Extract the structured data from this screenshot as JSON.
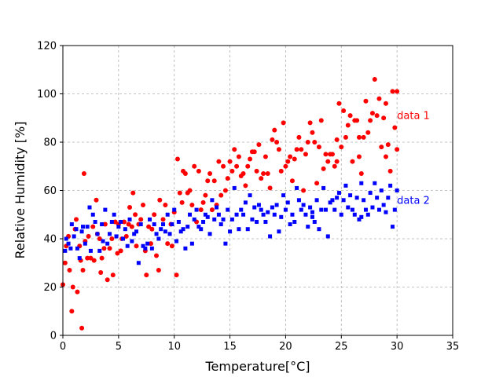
{
  "chart_data": {
    "type": "scatter",
    "xlabel": "Temperature[°C]",
    "ylabel": "Relative Humidity [%]",
    "xlim": [
      0,
      35
    ],
    "ylim": [
      0,
      120
    ],
    "xticks": [
      "0",
      "5",
      "10",
      "15",
      "20",
      "25",
      "30",
      "35"
    ],
    "yticks": [
      "0",
      "20",
      "40",
      "60",
      "80",
      "100",
      "120"
    ],
    "grid": true,
    "series": [
      {
        "name": "data 1",
        "color": "#ff0000",
        "marker": "circle",
        "points": [
          [
            0.0,
            21
          ],
          [
            0.2,
            30
          ],
          [
            0.3,
            37
          ],
          [
            0.5,
            41
          ],
          [
            0.6,
            27
          ],
          [
            0.8,
            10
          ],
          [
            0.9,
            20
          ],
          [
            1.1,
            44
          ],
          [
            1.2,
            48
          ],
          [
            1.3,
            18
          ],
          [
            1.5,
            37
          ],
          [
            1.6,
            31
          ],
          [
            1.7,
            3
          ],
          [
            1.8,
            27
          ],
          [
            1.9,
            67
          ],
          [
            2.0,
            39
          ],
          [
            2.2,
            32
          ],
          [
            2.3,
            41
          ],
          [
            2.5,
            32
          ],
          [
            2.7,
            45
          ],
          [
            2.8,
            31
          ],
          [
            3.0,
            56
          ],
          [
            3.1,
            42
          ],
          [
            3.3,
            40
          ],
          [
            3.4,
            26
          ],
          [
            3.5,
            32
          ],
          [
            3.7,
            36
          ],
          [
            3.8,
            46
          ],
          [
            4.0,
            23
          ],
          [
            4.2,
            36
          ],
          [
            4.4,
            40
          ],
          [
            4.5,
            25
          ],
          [
            4.7,
            47
          ],
          [
            4.9,
            34
          ],
          [
            5.0,
            46
          ],
          [
            5.2,
            35
          ],
          [
            5.3,
            40
          ],
          [
            5.5,
            47
          ],
          [
            5.7,
            41
          ],
          [
            5.9,
            46
          ],
          [
            6.0,
            53
          ],
          [
            6.2,
            45
          ],
          [
            6.3,
            59
          ],
          [
            6.5,
            50
          ],
          [
            6.6,
            37
          ],
          [
            6.8,
            46
          ],
          [
            7.0,
            48
          ],
          [
            7.2,
            54
          ],
          [
            7.4,
            35
          ],
          [
            7.5,
            25
          ],
          [
            7.7,
            45
          ],
          [
            7.9,
            38
          ],
          [
            8.0,
            44
          ],
          [
            8.2,
            50
          ],
          [
            8.4,
            33
          ],
          [
            8.6,
            27
          ],
          [
            8.7,
            56
          ],
          [
            9.0,
            48
          ],
          [
            9.2,
            54
          ],
          [
            9.4,
            38
          ],
          [
            9.7,
            46
          ],
          [
            9.8,
            37
          ],
          [
            10.0,
            51
          ],
          [
            10.2,
            25
          ],
          [
            10.3,
            73
          ],
          [
            10.5,
            59
          ],
          [
            10.7,
            55
          ],
          [
            10.8,
            68
          ],
          [
            11.0,
            67
          ],
          [
            11.2,
            59
          ],
          [
            11.4,
            60
          ],
          [
            11.6,
            54
          ],
          [
            11.8,
            70
          ],
          [
            12.0,
            47
          ],
          [
            12.2,
            68
          ],
          [
            12.4,
            52
          ],
          [
            12.6,
            55
          ],
          [
            12.8,
            58
          ],
          [
            13.0,
            64
          ],
          [
            13.2,
            67
          ],
          [
            13.4,
            52
          ],
          [
            13.6,
            64
          ],
          [
            13.8,
            54
          ],
          [
            14.0,
            72
          ],
          [
            14.2,
            58
          ],
          [
            14.4,
            70
          ],
          [
            14.6,
            60
          ],
          [
            14.8,
            65
          ],
          [
            15.0,
            72
          ],
          [
            15.2,
            68
          ],
          [
            15.4,
            77
          ],
          [
            15.6,
            70
          ],
          [
            15.8,
            74
          ],
          [
            16.0,
            66
          ],
          [
            16.2,
            67
          ],
          [
            16.4,
            62
          ],
          [
            16.6,
            70
          ],
          [
            16.8,
            73
          ],
          [
            17.0,
            76
          ],
          [
            17.2,
            76
          ],
          [
            17.4,
            68
          ],
          [
            17.6,
            79
          ],
          [
            17.8,
            65
          ],
          [
            18.0,
            67
          ],
          [
            18.2,
            74
          ],
          [
            18.4,
            67
          ],
          [
            18.6,
            61
          ],
          [
            18.8,
            81
          ],
          [
            19.0,
            85
          ],
          [
            19.2,
            80
          ],
          [
            19.4,
            77
          ],
          [
            19.6,
            68
          ],
          [
            19.8,
            88
          ],
          [
            20.0,
            70
          ],
          [
            20.2,
            72
          ],
          [
            20.4,
            74
          ],
          [
            20.6,
            64
          ],
          [
            20.8,
            73
          ],
          [
            21.0,
            77
          ],
          [
            21.2,
            82
          ],
          [
            21.4,
            77
          ],
          [
            21.6,
            60
          ],
          [
            21.8,
            75
          ],
          [
            22.0,
            80
          ],
          [
            22.2,
            88
          ],
          [
            22.4,
            84
          ],
          [
            22.6,
            80
          ],
          [
            22.8,
            63
          ],
          [
            23.0,
            78
          ],
          [
            23.2,
            89
          ],
          [
            23.4,
            69
          ],
          [
            23.6,
            75
          ],
          [
            23.8,
            72
          ],
          [
            24.0,
            75
          ],
          [
            24.2,
            75
          ],
          [
            24.4,
            70
          ],
          [
            24.6,
            81
          ],
          [
            24.8,
            96
          ],
          [
            25.0,
            78
          ],
          [
            25.2,
            93
          ],
          [
            25.4,
            82
          ],
          [
            25.6,
            87
          ],
          [
            25.8,
            91
          ],
          [
            26.0,
            72
          ],
          [
            26.2,
            89
          ],
          [
            26.4,
            89
          ],
          [
            26.6,
            74
          ],
          [
            26.8,
            67
          ],
          [
            27.0,
            82
          ],
          [
            27.2,
            97
          ],
          [
            27.4,
            84
          ],
          [
            27.6,
            89
          ],
          [
            27.8,
            92
          ],
          [
            28.0,
            106
          ],
          [
            28.2,
            91
          ],
          [
            28.4,
            98
          ],
          [
            28.6,
            78
          ],
          [
            28.8,
            90
          ],
          [
            29.0,
            96
          ],
          [
            29.2,
            79
          ],
          [
            29.4,
            68
          ],
          [
            29.6,
            101
          ],
          [
            29.8,
            86
          ],
          [
            30.0,
            77
          ],
          [
            30.0,
            101
          ],
          [
            24.6,
            72
          ],
          [
            26.6,
            82
          ],
          [
            29.0,
            74
          ]
        ]
      },
      {
        "name": "data 2",
        "color": "#0000ff",
        "marker": "square",
        "points": [
          [
            0.2,
            35
          ],
          [
            0.3,
            40
          ],
          [
            0.5,
            38
          ],
          [
            0.7,
            36
          ],
          [
            0.8,
            46
          ],
          [
            1.0,
            41
          ],
          [
            1.2,
            44
          ],
          [
            1.3,
            36
          ],
          [
            1.5,
            32
          ],
          [
            1.7,
            43
          ],
          [
            1.8,
            45
          ],
          [
            2.0,
            38
          ],
          [
            2.2,
            45
          ],
          [
            2.4,
            53
          ],
          [
            2.5,
            35
          ],
          [
            2.7,
            50
          ],
          [
            2.9,
            47
          ],
          [
            3.1,
            42
          ],
          [
            3.3,
            35
          ],
          [
            3.5,
            46
          ],
          [
            3.6,
            39
          ],
          [
            3.8,
            52
          ],
          [
            4.0,
            38
          ],
          [
            4.2,
            42
          ],
          [
            4.4,
            47
          ],
          [
            4.6,
            50
          ],
          [
            4.8,
            41
          ],
          [
            5.0,
            45
          ],
          [
            5.2,
            47
          ],
          [
            5.4,
            40
          ],
          [
            5.6,
            44
          ],
          [
            5.8,
            37
          ],
          [
            6.0,
            48
          ],
          [
            6.2,
            39
          ],
          [
            6.4,
            42
          ],
          [
            6.6,
            43
          ],
          [
            6.8,
            30
          ],
          [
            7.0,
            46
          ],
          [
            7.2,
            37
          ],
          [
            7.4,
            36
          ],
          [
            7.6,
            38
          ],
          [
            7.8,
            48
          ],
          [
            8.0,
            36
          ],
          [
            8.2,
            46
          ],
          [
            8.4,
            42
          ],
          [
            8.6,
            40
          ],
          [
            8.8,
            44
          ],
          [
            9.0,
            46
          ],
          [
            9.2,
            43
          ],
          [
            9.4,
            50
          ],
          [
            9.6,
            42
          ],
          [
            9.8,
            46
          ],
          [
            10.0,
            52
          ],
          [
            10.2,
            39
          ],
          [
            10.4,
            47
          ],
          [
            10.6,
            43
          ],
          [
            10.8,
            44
          ],
          [
            11.0,
            36
          ],
          [
            11.2,
            45
          ],
          [
            11.4,
            50
          ],
          [
            11.6,
            38
          ],
          [
            11.8,
            48
          ],
          [
            12.0,
            52
          ],
          [
            12.2,
            45
          ],
          [
            12.4,
            44
          ],
          [
            12.6,
            47
          ],
          [
            12.8,
            50
          ],
          [
            13.0,
            49
          ],
          [
            13.2,
            42
          ],
          [
            13.4,
            56
          ],
          [
            13.6,
            48
          ],
          [
            13.8,
            53
          ],
          [
            14.0,
            50
          ],
          [
            14.2,
            46
          ],
          [
            14.4,
            48
          ],
          [
            14.6,
            38
          ],
          [
            14.8,
            52
          ],
          [
            15.0,
            43
          ],
          [
            15.2,
            48
          ],
          [
            15.4,
            61
          ],
          [
            15.6,
            50
          ],
          [
            15.8,
            44
          ],
          [
            16.0,
            52
          ],
          [
            16.2,
            50
          ],
          [
            16.4,
            55
          ],
          [
            16.6,
            44
          ],
          [
            16.8,
            58
          ],
          [
            17.0,
            48
          ],
          [
            17.2,
            53
          ],
          [
            17.4,
            47
          ],
          [
            17.6,
            54
          ],
          [
            17.8,
            52
          ],
          [
            18.0,
            50
          ],
          [
            18.2,
            47
          ],
          [
            18.4,
            51
          ],
          [
            18.6,
            41
          ],
          [
            18.8,
            53
          ],
          [
            19.0,
            50
          ],
          [
            19.2,
            54
          ],
          [
            19.4,
            43
          ],
          [
            19.6,
            49
          ],
          [
            19.8,
            58
          ],
          [
            20.0,
            52
          ],
          [
            20.2,
            55
          ],
          [
            20.4,
            46
          ],
          [
            20.6,
            50
          ],
          [
            20.8,
            47
          ],
          [
            21.0,
            61
          ],
          [
            21.2,
            56
          ],
          [
            21.4,
            52
          ],
          [
            21.6,
            54
          ],
          [
            21.8,
            50
          ],
          [
            22.0,
            45
          ],
          [
            22.2,
            53
          ],
          [
            22.4,
            51
          ],
          [
            22.6,
            47
          ],
          [
            22.8,
            56
          ],
          [
            23.0,
            44
          ],
          [
            23.2,
            52
          ],
          [
            23.4,
            61
          ],
          [
            23.6,
            52
          ],
          [
            23.8,
            41
          ],
          [
            24.0,
            55
          ],
          [
            24.2,
            56
          ],
          [
            24.4,
            52
          ],
          [
            24.6,
            57
          ],
          [
            24.8,
            59
          ],
          [
            25.0,
            50
          ],
          [
            25.2,
            56
          ],
          [
            25.4,
            62
          ],
          [
            25.6,
            53
          ],
          [
            25.8,
            58
          ],
          [
            26.0,
            52
          ],
          [
            26.2,
            50
          ],
          [
            26.4,
            57
          ],
          [
            26.6,
            48
          ],
          [
            26.8,
            63
          ],
          [
            27.0,
            56
          ],
          [
            27.2,
            52
          ],
          [
            27.4,
            50
          ],
          [
            27.6,
            59
          ],
          [
            27.8,
            53
          ],
          [
            28.0,
            63
          ],
          [
            28.2,
            57
          ],
          [
            28.4,
            52
          ],
          [
            28.6,
            60
          ],
          [
            28.8,
            54
          ],
          [
            29.0,
            51
          ],
          [
            29.2,
            57
          ],
          [
            29.4,
            62
          ],
          [
            29.6,
            45
          ],
          [
            29.8,
            52
          ],
          [
            30.0,
            60
          ],
          [
            26.8,
            49
          ],
          [
            22.4,
            49
          ]
        ]
      }
    ],
    "annotations": [
      {
        "text": "data 1",
        "x": 30,
        "y": 91,
        "color": "#ff0000"
      },
      {
        "text": "data 2",
        "x": 30,
        "y": 56,
        "color": "#0000ff"
      }
    ]
  }
}
